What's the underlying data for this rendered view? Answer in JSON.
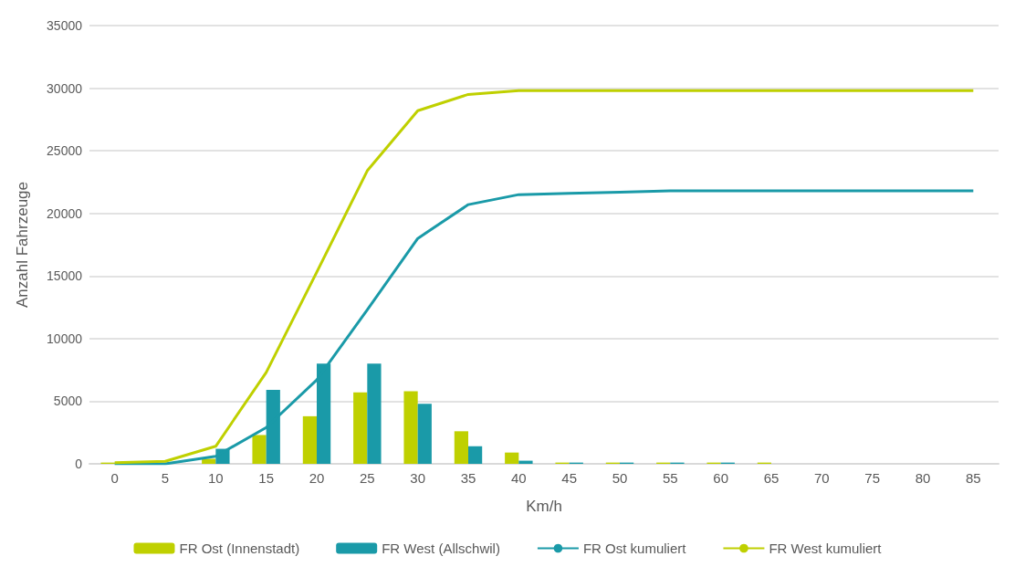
{
  "chart_data": {
    "type": "bar",
    "xlabel": "Km/h",
    "ylabel": "Anzahl Fahrzeuge",
    "categories": [
      "0",
      "5",
      "10",
      "15",
      "20",
      "25",
      "30",
      "35",
      "40",
      "45",
      "50",
      "55",
      "60",
      "65",
      "70",
      "75",
      "80",
      "85"
    ],
    "series": [
      {
        "name": "FR Ost (Innenstadt)",
        "color": "#bfd000",
        "values": [
          100,
          null,
          400,
          2300,
          3800,
          5700,
          5800,
          2600,
          900,
          100,
          100,
          100,
          100,
          100,
          0,
          0,
          0,
          0
        ]
      },
      {
        "name": "FR West (Allschwil)",
        "color": "#1a9aa8",
        "values": [
          0,
          0,
          1200,
          5900,
          8000,
          8000,
          4800,
          1400,
          250,
          100,
          100,
          100,
          100,
          0,
          0,
          0,
          0,
          0
        ]
      },
      {
        "name": "FR Ost kumuliert",
        "type": "line",
        "color": "#1a9aa8",
        "values": [
          0,
          0,
          600,
          2900,
          6700,
          12300,
          18000,
          20700,
          21500,
          21600,
          21700,
          21800,
          21800,
          21800,
          21800,
          21800,
          21800,
          21800
        ]
      },
      {
        "name": "FR West kumuliert",
        "type": "line",
        "color": "#bfd000",
        "values": [
          100,
          200,
          1400,
          7300,
          15300,
          23400,
          28200,
          29500,
          29800,
          29800,
          29800,
          29800,
          29800,
          29800,
          29800,
          29800,
          29800,
          29800
        ]
      }
    ],
    "ylim": [
      0,
      35000
    ],
    "yticks": [
      0,
      5000,
      10000,
      15000,
      20000,
      25000,
      30000,
      35000
    ],
    "grid": "y",
    "legend": "bottom",
    "marker": "none"
  }
}
